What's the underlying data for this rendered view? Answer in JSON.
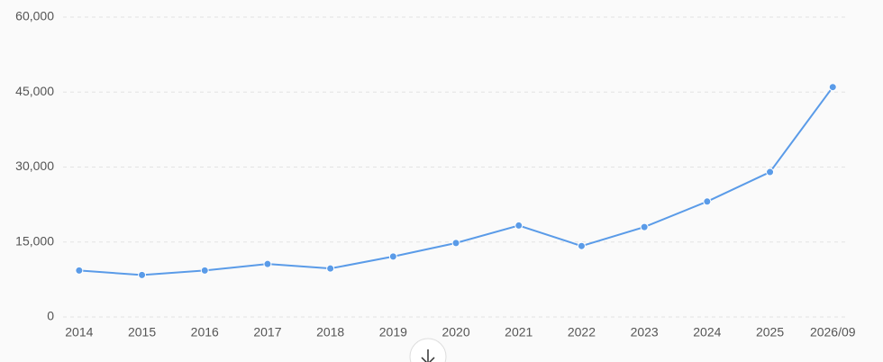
{
  "chart_data": {
    "type": "line",
    "categories": [
      "2014",
      "2015",
      "2016",
      "2017",
      "2018",
      "2019",
      "2020",
      "2021",
      "2022",
      "2023",
      "2024",
      "2025",
      "2026/09"
    ],
    "values": [
      9300,
      8400,
      9300,
      10600,
      9700,
      12100,
      14800,
      18300,
      14200,
      18000,
      23100,
      29000,
      46000
    ],
    "color": "#5a9be8",
    "ylim": [
      0,
      60000
    ],
    "yticks": [
      0,
      {
        "value": 15000,
        "label": "15,000"
      },
      {
        "value": 30000,
        "label": "30,000"
      },
      {
        "value": 45000,
        "label": "45,000"
      },
      {
        "value": 60000,
        "label": "60,000"
      }
    ],
    "grid": true
  }
}
